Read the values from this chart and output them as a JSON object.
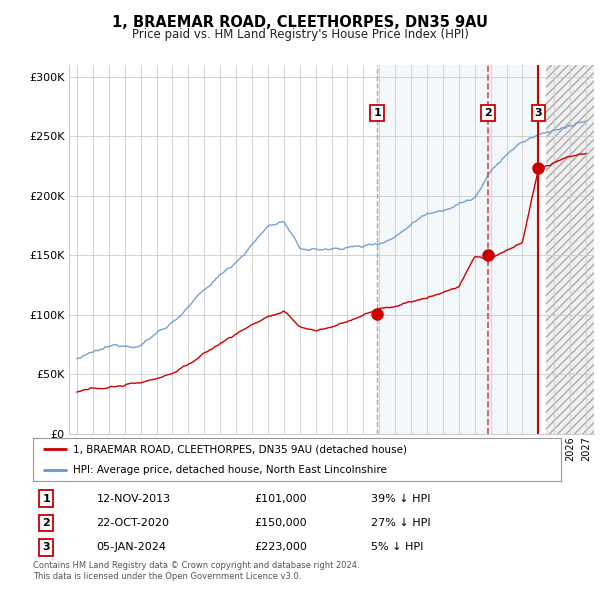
{
  "title": "1, BRAEMAR ROAD, CLEETHORPES, DN35 9AU",
  "subtitle": "Price paid vs. HM Land Registry's House Price Index (HPI)",
  "red_label": "1, BRAEMAR ROAD, CLEETHORPES, DN35 9AU (detached house)",
  "blue_label": "HPI: Average price, detached house, North East Lincolnshire",
  "footer1": "Contains HM Land Registry data © Crown copyright and database right 2024.",
  "footer2": "This data is licensed under the Open Government Licence v3.0.",
  "transactions": [
    {
      "num": 1,
      "date": "12-NOV-2013",
      "price": "£101,000",
      "pct": "39% ↓ HPI"
    },
    {
      "num": 2,
      "date": "22-OCT-2020",
      "price": "£150,000",
      "pct": "27% ↓ HPI"
    },
    {
      "num": 3,
      "date": "05-JAN-2024",
      "price": "£223,000",
      "pct": "5% ↓ HPI"
    }
  ],
  "vline1_date": 2013.87,
  "vline2_date": 2020.81,
  "vline3_date": 2024.01,
  "vline1_color": "#aaaaaa",
  "vline1_style": "dashed",
  "vline2_color": "#dd4444",
  "vline2_style": "dashed",
  "vline3_color": "#cc0000",
  "vline3_style": "solid",
  "marker_points_red": [
    [
      2013.87,
      101000
    ],
    [
      2020.81,
      150000
    ],
    [
      2024.01,
      223000
    ]
  ],
  "blue_shade_start": 2013.87,
  "blue_shade_end": 2024.01,
  "hatch_start": 2024.5,
  "ylim": [
    0,
    310000
  ],
  "xlim": [
    1994.5,
    2027.5
  ],
  "background_color": "#ffffff",
  "grid_color": "#cccccc",
  "red_color": "#cc0000",
  "blue_color": "#6699cc",
  "hpi_base_years": [
    1995,
    1997,
    1999,
    2001,
    2003,
    2005,
    2007,
    2008,
    2009,
    2010,
    2011,
    2012,
    2013,
    2014,
    2015,
    2016,
    2017,
    2018,
    2019,
    2020,
    2021,
    2022,
    2023,
    2024,
    2025,
    2026,
    2027
  ],
  "hpi_base_vals": [
    63000,
    70000,
    75000,
    95000,
    120000,
    145000,
    175000,
    180000,
    155000,
    155000,
    155000,
    158000,
    158000,
    162000,
    168000,
    180000,
    190000,
    195000,
    200000,
    205000,
    225000,
    240000,
    250000,
    255000,
    260000,
    263000,
    265000
  ],
  "red_base_years": [
    1995,
    1997,
    1999,
    2001,
    2003,
    2005,
    2007,
    2008,
    2009,
    2010,
    2011,
    2012,
    2013,
    2014,
    2015,
    2016,
    2017,
    2018,
    2019,
    2020,
    2021,
    2022,
    2023,
    2024,
    2025,
    2026,
    2027
  ],
  "red_base_vals": [
    35000,
    39000,
    43000,
    52000,
    68000,
    85000,
    100000,
    103000,
    90000,
    87000,
    90000,
    95000,
    101000,
    105000,
    108000,
    112000,
    115000,
    120000,
    125000,
    150000,
    148000,
    155000,
    162000,
    223000,
    228000,
    232000,
    235000
  ]
}
